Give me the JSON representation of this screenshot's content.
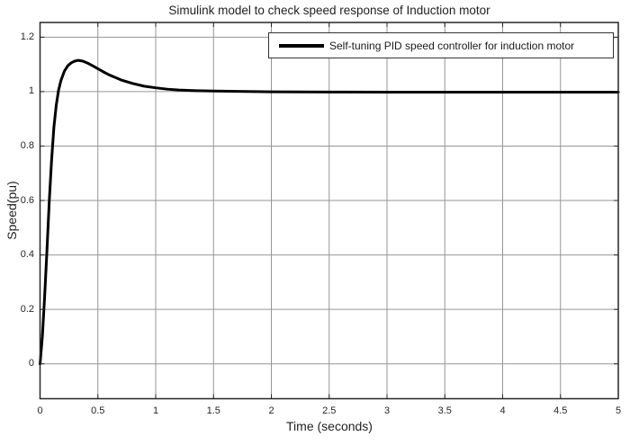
{
  "figure": {
    "background": "#ffffff"
  },
  "chart_data": {
    "type": "line",
    "title": "Simulink model to check speed response of Induction motor",
    "xlabel": "Time (seconds)",
    "ylabel": "Speed(pu)",
    "xlim": [
      0,
      5
    ],
    "ylim": [
      -0.128,
      1.254
    ],
    "grid": true,
    "grid_color": "#969696",
    "axis_color": "#262626",
    "xticks": [
      0,
      0.5,
      1,
      1.5,
      2,
      2.5,
      3,
      3.5,
      4,
      4.5,
      5
    ],
    "xtick_labels": [
      "0",
      "0.5",
      "1",
      "1.5",
      "2",
      "2.5",
      "3",
      "3.5",
      "4",
      "4.5",
      "5"
    ],
    "yticks": [
      0,
      0.2,
      0.4,
      0.6,
      0.8,
      1,
      1.2
    ],
    "ytick_labels": [
      "0",
      "0.2",
      "0.4",
      "0.6",
      "0.8",
      "1",
      "1.2"
    ],
    "legend": {
      "position": "northeast",
      "entries": [
        {
          "label": "Self-tuning PID speed controller for induction motor",
          "color": "#000000"
        }
      ]
    },
    "series": [
      {
        "name": "Self-tuning PID speed controller for induction motor",
        "color": "#000000",
        "line_width": 3,
        "x": [
          0,
          0.02,
          0.04,
          0.06,
          0.08,
          0.1,
          0.12,
          0.14,
          0.16,
          0.18,
          0.21,
          0.24,
          0.27,
          0.3,
          0.33,
          0.37,
          0.41,
          0.45,
          0.5,
          0.55,
          0.6,
          0.65,
          0.7,
          0.8,
          0.9,
          1.0,
          1.1,
          1.2,
          1.35,
          1.5,
          1.7,
          2.0,
          2.5,
          3.0,
          3.5,
          4.0,
          4.5,
          5.0
        ],
        "y": [
          0,
          0.1,
          0.25,
          0.42,
          0.6,
          0.75,
          0.87,
          0.95,
          1.005,
          1.04,
          1.075,
          1.095,
          1.106,
          1.112,
          1.115,
          1.112,
          1.105,
          1.096,
          1.084,
          1.072,
          1.061,
          1.052,
          1.043,
          1.03,
          1.02,
          1.014,
          1.009,
          1.006,
          1.0035,
          1.002,
          1.0008,
          0.9995,
          0.9985,
          0.998,
          0.998,
          0.998,
          0.998,
          0.998
        ]
      }
    ]
  }
}
